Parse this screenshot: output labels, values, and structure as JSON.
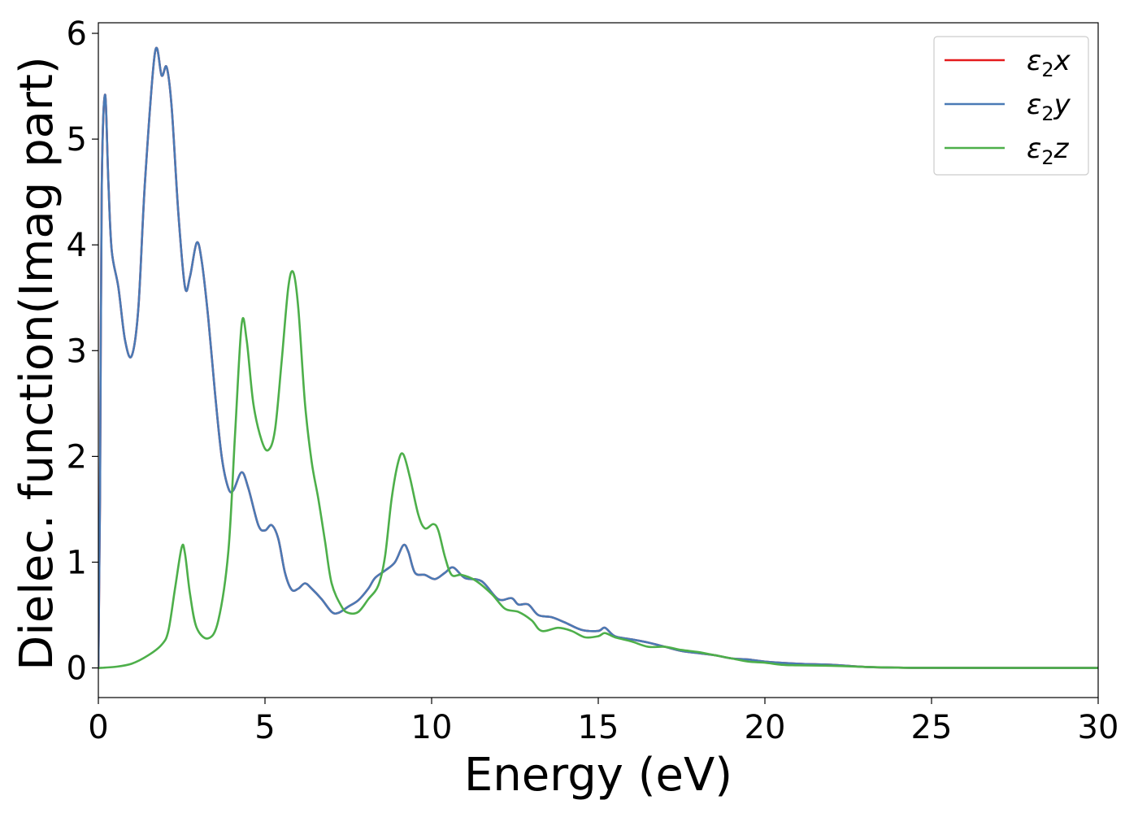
{
  "chart_data": {
    "type": "line",
    "title": "",
    "xlabel": "Energy (eV)",
    "ylabel": "Dielec. function(Imag part)",
    "xlim": [
      0,
      30
    ],
    "ylim": [
      -0.28,
      6.1
    ],
    "xticks": [
      0,
      5,
      10,
      15,
      20,
      25,
      30
    ],
    "yticks": [
      0,
      1,
      2,
      3,
      4,
      5,
      6
    ],
    "grid": false,
    "legend_position": "top-right",
    "series": [
      {
        "name": "ε2x",
        "legend_main": "ε",
        "legend_sub": "2",
        "legend_suffix": "x",
        "color": "#e41a1c",
        "points": [
          [
            0,
            0
          ],
          [
            0.05,
            1.6
          ],
          [
            0.1,
            4.5
          ],
          [
            0.2,
            5.42
          ],
          [
            0.3,
            4.6
          ],
          [
            0.4,
            3.95
          ],
          [
            0.6,
            3.6
          ],
          [
            0.8,
            3.1
          ],
          [
            1.0,
            2.95
          ],
          [
            1.2,
            3.4
          ],
          [
            1.4,
            4.6
          ],
          [
            1.7,
            5.82
          ],
          [
            1.9,
            5.6
          ],
          [
            2.05,
            5.68
          ],
          [
            2.2,
            5.3
          ],
          [
            2.4,
            4.3
          ],
          [
            2.6,
            3.6
          ],
          [
            2.75,
            3.7
          ],
          [
            2.95,
            4.02
          ],
          [
            3.1,
            3.85
          ],
          [
            3.3,
            3.3
          ],
          [
            3.5,
            2.6
          ],
          [
            3.7,
            2.0
          ],
          [
            3.9,
            1.7
          ],
          [
            4.05,
            1.68
          ],
          [
            4.3,
            1.85
          ],
          [
            4.5,
            1.7
          ],
          [
            4.8,
            1.35
          ],
          [
            5.0,
            1.3
          ],
          [
            5.2,
            1.35
          ],
          [
            5.4,
            1.22
          ],
          [
            5.6,
            0.9
          ],
          [
            5.8,
            0.74
          ],
          [
            6.0,
            0.75
          ],
          [
            6.2,
            0.8
          ],
          [
            6.4,
            0.75
          ],
          [
            6.7,
            0.65
          ],
          [
            7.0,
            0.53
          ],
          [
            7.2,
            0.52
          ],
          [
            7.5,
            0.58
          ],
          [
            7.8,
            0.64
          ],
          [
            8.1,
            0.75
          ],
          [
            8.3,
            0.85
          ],
          [
            8.6,
            0.92
          ],
          [
            8.9,
            1.0
          ],
          [
            9.15,
            1.16
          ],
          [
            9.3,
            1.1
          ],
          [
            9.5,
            0.9
          ],
          [
            9.8,
            0.88
          ],
          [
            10.1,
            0.84
          ],
          [
            10.4,
            0.9
          ],
          [
            10.65,
            0.95
          ],
          [
            11.0,
            0.85
          ],
          [
            11.5,
            0.82
          ],
          [
            12.0,
            0.65
          ],
          [
            12.4,
            0.66
          ],
          [
            12.6,
            0.6
          ],
          [
            12.9,
            0.6
          ],
          [
            13.2,
            0.5
          ],
          [
            13.6,
            0.48
          ],
          [
            14.0,
            0.43
          ],
          [
            14.5,
            0.36
          ],
          [
            15.0,
            0.35
          ],
          [
            15.2,
            0.38
          ],
          [
            15.5,
            0.3
          ],
          [
            16.0,
            0.27
          ],
          [
            16.5,
            0.24
          ],
          [
            17.0,
            0.2
          ],
          [
            17.5,
            0.16
          ],
          [
            18.0,
            0.14
          ],
          [
            18.5,
            0.12
          ],
          [
            19.0,
            0.09
          ],
          [
            19.5,
            0.08
          ],
          [
            20.0,
            0.06
          ],
          [
            21.0,
            0.04
          ],
          [
            22.0,
            0.03
          ],
          [
            23.0,
            0.01
          ],
          [
            24.0,
            0.003
          ],
          [
            25.0,
            0.001
          ],
          [
            30.0,
            0.0
          ]
        ]
      },
      {
        "name": "ε2y",
        "legend_main": "ε",
        "legend_sub": "2",
        "legend_suffix": "y",
        "color": "#4a7ab5",
        "points": [
          [
            0,
            0
          ],
          [
            0.05,
            1.6
          ],
          [
            0.1,
            4.5
          ],
          [
            0.2,
            5.42
          ],
          [
            0.3,
            4.6
          ],
          [
            0.4,
            3.95
          ],
          [
            0.6,
            3.6
          ],
          [
            0.8,
            3.1
          ],
          [
            1.0,
            2.95
          ],
          [
            1.2,
            3.4
          ],
          [
            1.4,
            4.6
          ],
          [
            1.7,
            5.82
          ],
          [
            1.9,
            5.6
          ],
          [
            2.05,
            5.68
          ],
          [
            2.2,
            5.3
          ],
          [
            2.4,
            4.3
          ],
          [
            2.6,
            3.6
          ],
          [
            2.75,
            3.7
          ],
          [
            2.95,
            4.02
          ],
          [
            3.1,
            3.85
          ],
          [
            3.3,
            3.3
          ],
          [
            3.5,
            2.6
          ],
          [
            3.7,
            2.0
          ],
          [
            3.9,
            1.7
          ],
          [
            4.05,
            1.68
          ],
          [
            4.3,
            1.85
          ],
          [
            4.5,
            1.7
          ],
          [
            4.8,
            1.35
          ],
          [
            5.0,
            1.3
          ],
          [
            5.2,
            1.35
          ],
          [
            5.4,
            1.22
          ],
          [
            5.6,
            0.9
          ],
          [
            5.8,
            0.74
          ],
          [
            6.0,
            0.75
          ],
          [
            6.2,
            0.8
          ],
          [
            6.4,
            0.75
          ],
          [
            6.7,
            0.65
          ],
          [
            7.0,
            0.53
          ],
          [
            7.2,
            0.52
          ],
          [
            7.5,
            0.58
          ],
          [
            7.8,
            0.64
          ],
          [
            8.1,
            0.75
          ],
          [
            8.3,
            0.85
          ],
          [
            8.6,
            0.92
          ],
          [
            8.9,
            1.0
          ],
          [
            9.15,
            1.16
          ],
          [
            9.3,
            1.1
          ],
          [
            9.5,
            0.9
          ],
          [
            9.8,
            0.88
          ],
          [
            10.1,
            0.84
          ],
          [
            10.4,
            0.9
          ],
          [
            10.65,
            0.95
          ],
          [
            11.0,
            0.85
          ],
          [
            11.5,
            0.82
          ],
          [
            12.0,
            0.65
          ],
          [
            12.4,
            0.66
          ],
          [
            12.6,
            0.6
          ],
          [
            12.9,
            0.6
          ],
          [
            13.2,
            0.5
          ],
          [
            13.6,
            0.48
          ],
          [
            14.0,
            0.43
          ],
          [
            14.5,
            0.36
          ],
          [
            15.0,
            0.35
          ],
          [
            15.2,
            0.38
          ],
          [
            15.5,
            0.3
          ],
          [
            16.0,
            0.27
          ],
          [
            16.5,
            0.24
          ],
          [
            17.0,
            0.2
          ],
          [
            17.5,
            0.16
          ],
          [
            18.0,
            0.14
          ],
          [
            18.5,
            0.12
          ],
          [
            19.0,
            0.09
          ],
          [
            19.5,
            0.08
          ],
          [
            20.0,
            0.06
          ],
          [
            21.0,
            0.04
          ],
          [
            22.0,
            0.03
          ],
          [
            23.0,
            0.01
          ],
          [
            24.0,
            0.003
          ],
          [
            25.0,
            0.001
          ],
          [
            30.0,
            0.0
          ]
        ]
      },
      {
        "name": "ε2z",
        "legend_main": "ε",
        "legend_sub": "2",
        "legend_suffix": "z",
        "color": "#4daf4a",
        "points": [
          [
            0,
            0
          ],
          [
            0.5,
            0.01
          ],
          [
            1.0,
            0.04
          ],
          [
            1.5,
            0.12
          ],
          [
            1.9,
            0.22
          ],
          [
            2.1,
            0.35
          ],
          [
            2.3,
            0.75
          ],
          [
            2.5,
            1.14
          ],
          [
            2.6,
            1.08
          ],
          [
            2.75,
            0.7
          ],
          [
            2.95,
            0.38
          ],
          [
            3.3,
            0.28
          ],
          [
            3.6,
            0.45
          ],
          [
            3.9,
            1.1
          ],
          [
            4.1,
            2.2
          ],
          [
            4.3,
            3.25
          ],
          [
            4.45,
            3.1
          ],
          [
            4.65,
            2.5
          ],
          [
            4.9,
            2.15
          ],
          [
            5.1,
            2.06
          ],
          [
            5.3,
            2.25
          ],
          [
            5.5,
            2.9
          ],
          [
            5.7,
            3.6
          ],
          [
            5.85,
            3.74
          ],
          [
            6.0,
            3.4
          ],
          [
            6.2,
            2.5
          ],
          [
            6.4,
            1.95
          ],
          [
            6.6,
            1.6
          ],
          [
            6.8,
            1.2
          ],
          [
            7.0,
            0.8
          ],
          [
            7.3,
            0.58
          ],
          [
            7.5,
            0.52
          ],
          [
            7.8,
            0.53
          ],
          [
            8.1,
            0.65
          ],
          [
            8.4,
            0.78
          ],
          [
            8.6,
            1.05
          ],
          [
            8.8,
            1.6
          ],
          [
            9.0,
            1.95
          ],
          [
            9.15,
            2.02
          ],
          [
            9.35,
            1.8
          ],
          [
            9.6,
            1.45
          ],
          [
            9.8,
            1.32
          ],
          [
            10.05,
            1.36
          ],
          [
            10.2,
            1.3
          ],
          [
            10.4,
            1.05
          ],
          [
            10.6,
            0.88
          ],
          [
            10.9,
            0.88
          ],
          [
            11.3,
            0.83
          ],
          [
            11.8,
            0.7
          ],
          [
            12.2,
            0.56
          ],
          [
            12.6,
            0.53
          ],
          [
            13.0,
            0.45
          ],
          [
            13.3,
            0.35
          ],
          [
            13.8,
            0.38
          ],
          [
            14.2,
            0.35
          ],
          [
            14.6,
            0.29
          ],
          [
            15.0,
            0.3
          ],
          [
            15.2,
            0.33
          ],
          [
            15.5,
            0.29
          ],
          [
            16.0,
            0.25
          ],
          [
            16.5,
            0.2
          ],
          [
            17.0,
            0.2
          ],
          [
            17.5,
            0.17
          ],
          [
            18.0,
            0.15
          ],
          [
            18.5,
            0.12
          ],
          [
            19.0,
            0.09
          ],
          [
            19.5,
            0.06
          ],
          [
            20.0,
            0.05
          ],
          [
            20.5,
            0.03
          ],
          [
            21.0,
            0.025
          ],
          [
            22.0,
            0.02
          ],
          [
            23.0,
            0.01
          ],
          [
            24.0,
            0.003
          ],
          [
            25.0,
            0.001
          ],
          [
            30.0,
            0.0
          ]
        ]
      }
    ]
  }
}
